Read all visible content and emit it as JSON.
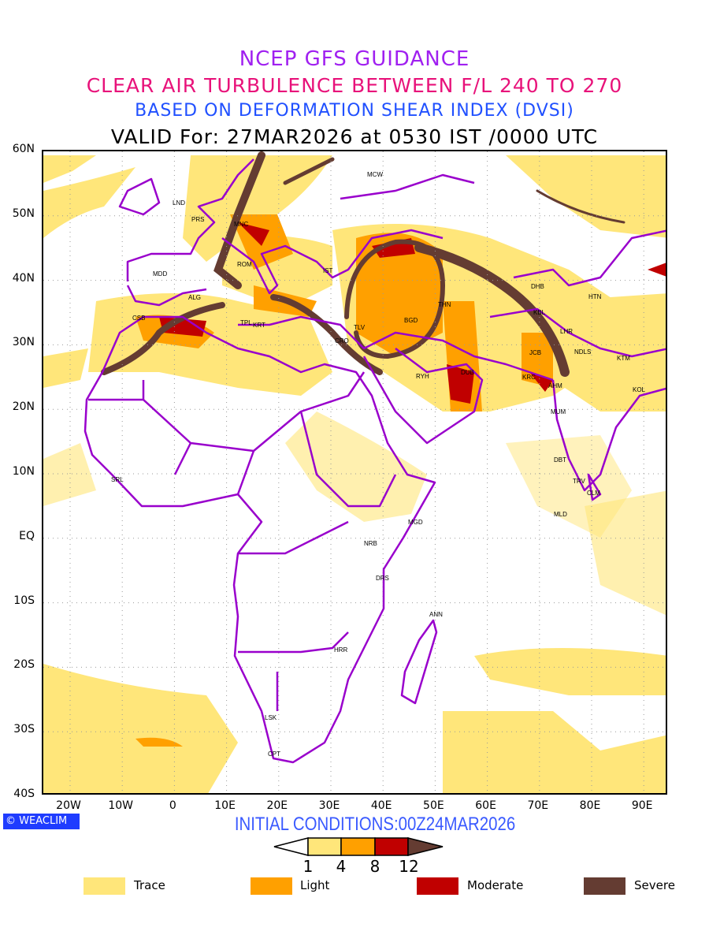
{
  "titles": {
    "line1": "NCEP GFS GUIDANCE",
    "line2": "CLEAR AIR TURBULENCE BETWEEN F/L 240 TO 270",
    "line3": "BASED ON DEFORMATION SHEAR INDEX (DVSI)",
    "line4": "VALID For: 27MAR2026 at 0530 IST /0000 UTC"
  },
  "axes": {
    "lat": [
      "60N",
      "50N",
      "40N",
      "30N",
      "20N",
      "10N",
      "EQ",
      "10S",
      "20S",
      "30S",
      "40S"
    ],
    "lon": [
      "20W",
      "10W",
      "0",
      "10E",
      "20E",
      "30E",
      "40E",
      "50E",
      "60E",
      "70E",
      "80E",
      "90E"
    ]
  },
  "cities": [
    "MCW",
    "LND",
    "PRS",
    "MNC",
    "MDD",
    "ROM",
    "IST",
    "ALG",
    "CSB",
    "TPL",
    "KRT",
    "CRO",
    "TLV",
    "BGD",
    "THN",
    "RYH",
    "DUB",
    "DHB",
    "HTN",
    "KBL",
    "LHR",
    "JCB",
    "NDLS",
    "KTM",
    "KRC",
    "AHM",
    "KOL",
    "MUM",
    "DBT",
    "TRV",
    "CLM",
    "MLD",
    "SRL",
    "MGD",
    "NRB",
    "DRS",
    "ANN",
    "HRR",
    "LSK",
    "CPT"
  ],
  "logo": "WEACLIM",
  "initial_conditions": "INITIAL CONDITIONS:00Z24MAR2026",
  "colorbar": {
    "ticks": [
      "1",
      "4",
      "8",
      "12"
    ],
    "colors": [
      "#ffe67a",
      "#ffa000",
      "#c00000",
      "#643c32"
    ]
  },
  "legend": [
    {
      "label": "Trace",
      "color": "#ffe67a"
    },
    {
      "label": "Light",
      "color": "#ffa000"
    },
    {
      "label": "Moderate",
      "color": "#c00000"
    },
    {
      "label": "Severe",
      "color": "#643c32"
    }
  ],
  "colors": {
    "border": "#9900cc",
    "title1": "#a020f0",
    "title2": "#e8127a",
    "title3": "#2050ff"
  }
}
